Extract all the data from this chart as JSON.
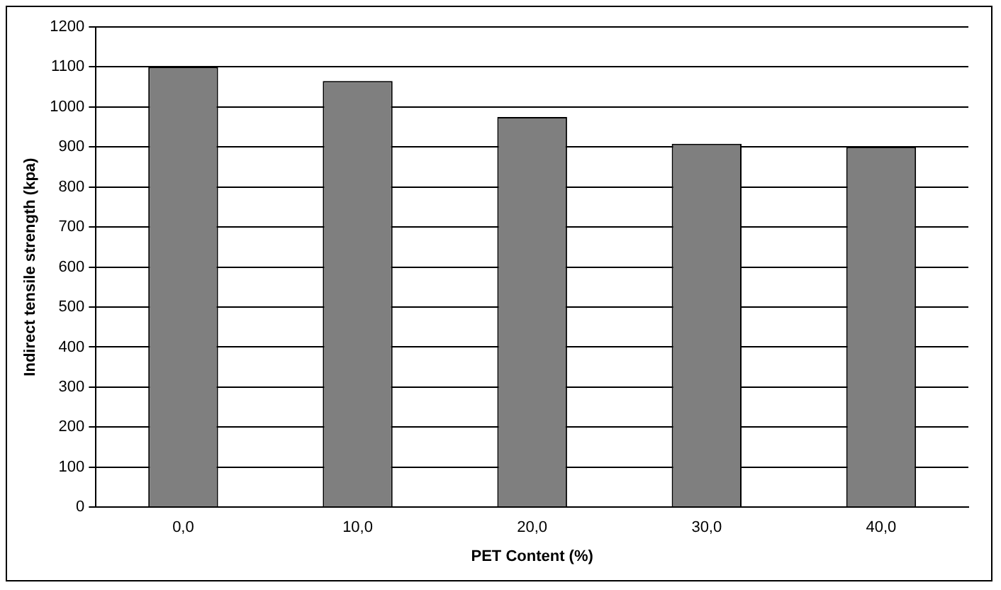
{
  "chart_data": {
    "type": "bar",
    "xlabel": "PET Content (%)",
    "ylabel": "Indirect tensile strength (kpa)",
    "categories": [
      "0,0",
      "10,0",
      "20,0",
      "30,0",
      "40,0"
    ],
    "values": [
      1100,
      1065,
      975,
      908,
      900
    ],
    "color": "#7f7f7f",
    "ylim": [
      0,
      1200
    ],
    "yticks": [
      0,
      100,
      200,
      300,
      400,
      500,
      600,
      700,
      800,
      900,
      1000,
      1100,
      1200
    ],
    "grid": "y"
  }
}
